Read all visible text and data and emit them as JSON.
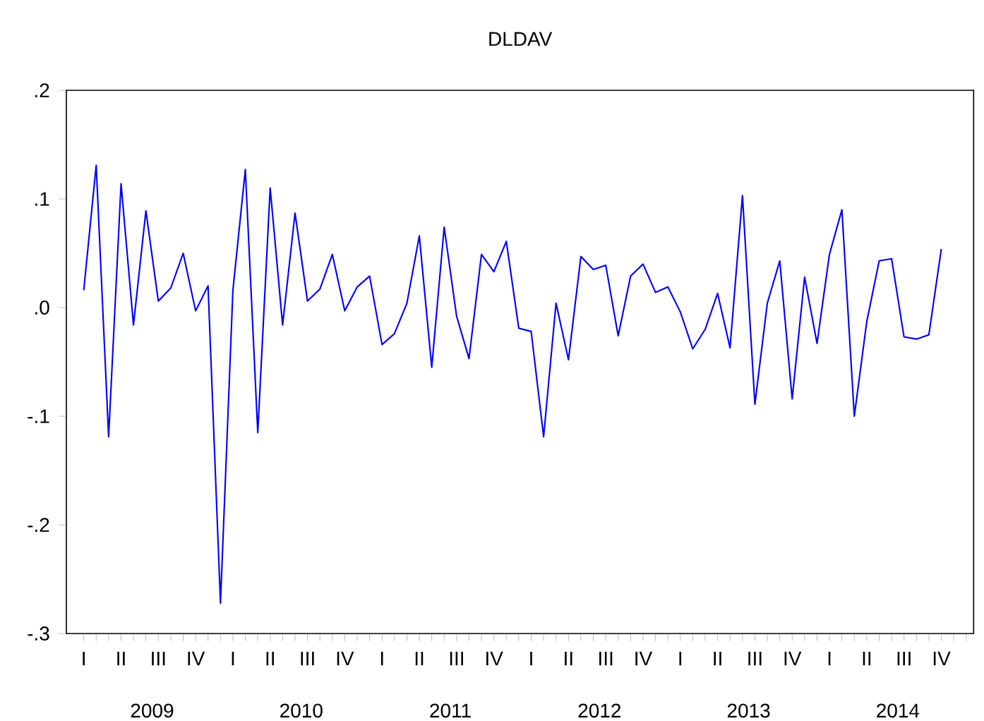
{
  "chart_data": {
    "type": "line",
    "title": "DLDAV",
    "categories": [
      "I",
      null,
      null,
      "II",
      null,
      null,
      "III",
      null,
      null,
      "IV",
      null,
      null,
      "I",
      null,
      null,
      "II",
      null,
      null,
      "III",
      null,
      null,
      "IV",
      null,
      null,
      "I",
      null,
      null,
      "II",
      null,
      null,
      "III",
      null,
      null,
      "IV",
      null,
      null,
      "I",
      null,
      null,
      "II",
      null,
      null,
      "III",
      null,
      null,
      "IV",
      null,
      null,
      "I",
      null,
      null,
      "II",
      null,
      null,
      "III",
      null,
      null,
      "IV",
      null,
      null,
      "I",
      null,
      null,
      "II",
      null,
      null,
      "III",
      null,
      null,
      "IV",
      null,
      null
    ],
    "values": [
      0.016,
      0.131,
      -0.119,
      0.114,
      -0.016,
      0.089,
      0.006,
      0.018,
      0.05,
      -0.003,
      0.02,
      -0.272,
      0.016,
      0.127,
      -0.115,
      0.11,
      -0.016,
      0.087,
      0.006,
      0.017,
      0.049,
      -0.003,
      0.019,
      0.029,
      -0.034,
      -0.024,
      0.004,
      0.066,
      -0.055,
      0.074,
      -0.008,
      -0.047,
      0.049,
      0.033,
      0.061,
      -0.019,
      -0.022,
      -0.119,
      0.004,
      -0.048,
      0.047,
      0.035,
      0.039,
      -0.026,
      0.029,
      0.04,
      0.014,
      0.019,
      -0.004,
      -0.038,
      -0.02,
      0.013,
      -0.037,
      0.103,
      -0.089,
      0.004,
      0.043,
      -0.084,
      0.028,
      -0.033,
      0.049,
      0.09,
      -0.1,
      -0.013,
      0.043,
      0.045,
      -0.027,
      -0.029,
      -0.025,
      0.054,
      null,
      null
    ],
    "color": "#0000ff",
    "ylim": [
      -0.3,
      0.2
    ],
    "yticks": [
      {
        "value": -0.3,
        "label": "-.3"
      },
      {
        "value": -0.2,
        "label": "-.2"
      },
      {
        "value": -0.1,
        "label": "-.1"
      },
      {
        "value": 0.0,
        "label": ".0"
      },
      {
        "value": 0.1,
        "label": ".1"
      },
      {
        "value": 0.2,
        "label": ".2"
      }
    ],
    "annotations": [
      "2009",
      "2010",
      "2011",
      "2012",
      "2013",
      "2014"
    ]
  }
}
